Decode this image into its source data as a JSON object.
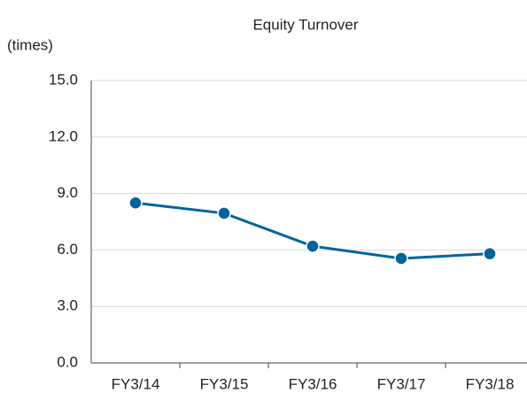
{
  "chart_data": {
    "type": "line",
    "title": "Equity Turnover",
    "y_label": "(times)",
    "categories": [
      "FY3/14",
      "FY3/15",
      "FY3/16",
      "FY3/17",
      "FY3/18"
    ],
    "series": [
      {
        "name": "Equity Turnover",
        "color": "#00649b",
        "values": [
          8.5,
          7.95,
          6.2,
          5.55,
          5.8
        ]
      }
    ],
    "ylim": [
      0,
      15
    ],
    "yticks": [
      {
        "value": 0,
        "label": "0.0"
      },
      {
        "value": 3,
        "label": "3.0"
      },
      {
        "value": 6,
        "label": "6.0"
      },
      {
        "value": 9,
        "label": "9.0"
      },
      {
        "value": 12,
        "label": "12.0"
      },
      {
        "value": 15,
        "label": "15.0"
      }
    ],
    "grid": true
  }
}
